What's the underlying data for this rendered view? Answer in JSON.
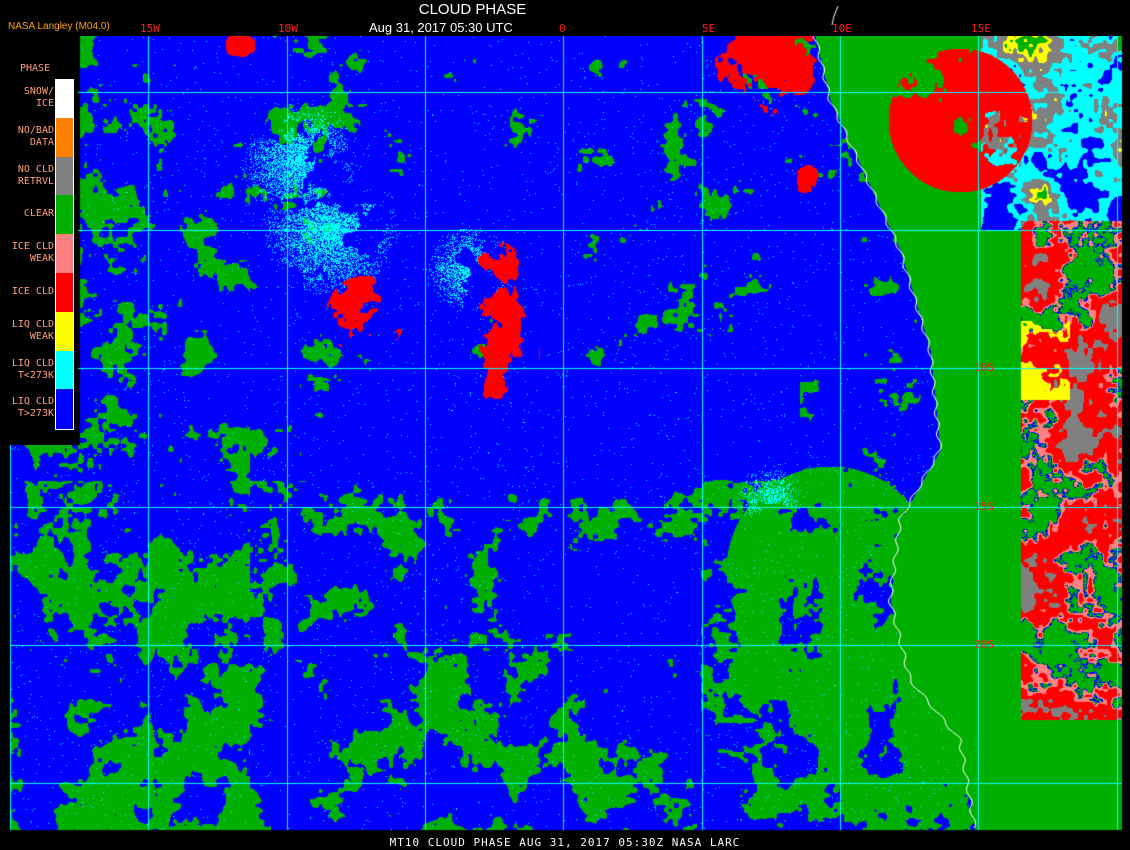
{
  "header": {
    "title": "CLOUD PHASE",
    "subtitle": "Aug 31, 2017 05:30 UTC",
    "credit": "NASA Langley (M04.0)"
  },
  "footer": {
    "text": "MT10  CLOUD PHASE   AUG 31, 2017 05:30Z   NASA LARC"
  },
  "longitude_labels": [
    "15W",
    "10W",
    "0",
    "5E",
    "10E",
    "15E"
  ],
  "latitude_labels": [
    "10S",
    "15S",
    "20S"
  ],
  "legend": {
    "title": "PHASE",
    "items": [
      {
        "line1": "SNOW/",
        "line2": "ICE",
        "color": "#ffffff"
      },
      {
        "line1": "NO/BAD",
        "line2": "DATA",
        "color": "#ff8000"
      },
      {
        "line1": "NO CLD",
        "line2": "RETRVL",
        "color": "#808080"
      },
      {
        "line1": "CLEAR",
        "line2": "",
        "color": "#00b000"
      },
      {
        "line1": "ICE CLD",
        "line2": "WEAK",
        "color": "#ff8080"
      },
      {
        "line1": "ICE CLD",
        "line2": "",
        "color": "#ff0000"
      },
      {
        "line1": "LIQ CLD",
        "line2": "WEAK",
        "color": "#ffff00"
      },
      {
        "line1": "LIQ CLD",
        "line2": "T<273K",
        "color": "#00ffff"
      },
      {
        "line1": "LIQ CLD",
        "line2": "T>273K",
        "color": "#0000ff"
      }
    ]
  },
  "colors": {
    "grid": "#00ffff",
    "coastline": "#ffffff",
    "labels": "#ff2020"
  }
}
